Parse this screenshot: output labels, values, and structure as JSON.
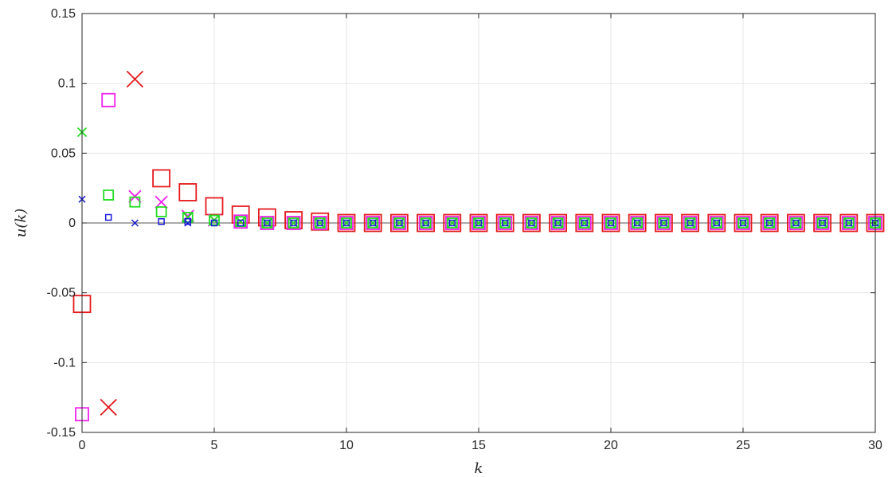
{
  "chart_data": {
    "type": "scatter",
    "title": "",
    "xlabel": "k",
    "ylabel": "u(k)",
    "xlim": [
      0,
      30
    ],
    "ylim": [
      -0.15,
      0.15
    ],
    "grid": true,
    "zero_line": true,
    "x_ticks": [
      "0",
      "5",
      "10",
      "15",
      "20",
      "25",
      "30"
    ],
    "y_ticks": [
      "-0.15",
      "-0.1",
      "-0.05",
      "0",
      "0.05",
      "0.1",
      "0.15"
    ],
    "series": [
      {
        "marker": "square",
        "size": "large",
        "color": "#e41a1c",
        "x": [
          0,
          1,
          2,
          3,
          4,
          5,
          6,
          7,
          8,
          9,
          10,
          11,
          12,
          13,
          14,
          15,
          16,
          17,
          18,
          19,
          20,
          21,
          22,
          23,
          24,
          25,
          26,
          27,
          28,
          29,
          30
        ],
        "y": [
          -0.058,
          null,
          null,
          0.032,
          0.022,
          0.012,
          0.006,
          0.004,
          0.002,
          0.001,
          0,
          0,
          0,
          0,
          0,
          0,
          0,
          0,
          0,
          0,
          0,
          0,
          0,
          0,
          0,
          0,
          0,
          0,
          0,
          0,
          0
        ]
      },
      {
        "marker": "x",
        "size": "large",
        "color": "#e41a1c",
        "x": [
          1,
          2
        ],
        "y": [
          -0.132,
          0.103
        ]
      },
      {
        "marker": "square",
        "size": "medium",
        "color": "#ee22ee",
        "x": [
          0,
          1,
          2,
          3,
          4,
          5,
          6,
          7,
          8,
          9,
          10,
          11,
          12,
          13,
          14,
          15,
          16,
          17,
          18,
          19,
          20,
          21,
          22,
          23,
          24,
          25,
          26,
          27,
          28,
          29,
          30
        ],
        "y": [
          -0.137,
          0.088,
          null,
          null,
          null,
          null,
          0.001,
          0,
          0,
          0,
          0,
          0,
          0,
          0,
          0,
          0,
          0,
          0,
          0,
          0,
          0,
          0,
          0,
          0,
          0,
          0,
          0,
          0,
          0,
          0,
          0
        ]
      },
      {
        "marker": "x",
        "size": "medium",
        "color": "#ee22ee",
        "x": [
          2,
          3,
          4,
          5,
          6,
          7,
          8,
          9,
          10,
          11,
          12,
          13,
          14,
          15,
          16,
          17,
          18,
          19,
          20,
          21,
          22,
          23,
          24,
          25,
          26,
          27,
          28,
          29,
          30
        ],
        "y": [
          0.019,
          0.015,
          0.005,
          0.002,
          0.001,
          0,
          0,
          0,
          0,
          0,
          0,
          0,
          0,
          0,
          0,
          0,
          0,
          0,
          0,
          0,
          0,
          0,
          0,
          0,
          0,
          0,
          0,
          0,
          0
        ]
      },
      {
        "marker": "square",
        "size": "small",
        "color": "#22dd22",
        "x": [
          1,
          2,
          3,
          4,
          5,
          6,
          7,
          8,
          9,
          10,
          11,
          12,
          13,
          14,
          15,
          16,
          17,
          18,
          19,
          20,
          21,
          22,
          23,
          24,
          25,
          26,
          27,
          28,
          29,
          30
        ],
        "y": [
          0.02,
          0.015,
          0.008,
          0.004,
          0.002,
          0.001,
          0,
          0,
          0,
          0,
          0,
          0,
          0,
          0,
          0,
          0,
          0,
          0,
          0,
          0,
          0,
          0,
          0,
          0,
          0,
          0,
          0,
          0,
          0,
          0
        ]
      },
      {
        "marker": "x",
        "size": "small",
        "color": "#22dd22",
        "x": [
          0,
          1,
          2,
          3,
          4,
          5,
          6,
          7,
          8,
          9,
          10,
          11,
          12,
          13,
          14,
          15,
          16,
          17,
          18,
          19,
          20,
          21,
          22,
          23,
          24,
          25,
          26,
          27,
          28,
          29,
          30
        ],
        "y": [
          0.065,
          null,
          null,
          null,
          0.004,
          0.002,
          0.001,
          0,
          0,
          0,
          0,
          0,
          0,
          0,
          0,
          0,
          0,
          0,
          0,
          0,
          0,
          0,
          0,
          0,
          0,
          0,
          0,
          0,
          0,
          0,
          0
        ]
      },
      {
        "marker": "square",
        "size": "tiny",
        "color": "#1a1adb",
        "x": [
          1,
          2,
          3,
          4,
          5,
          6,
          7,
          8,
          9,
          10,
          11,
          12,
          13,
          14,
          15,
          16,
          17,
          18,
          19,
          20,
          21,
          22,
          23,
          24,
          25,
          26,
          27,
          28,
          29,
          30
        ],
        "y": [
          0.004,
          null,
          0.001,
          0.001,
          0,
          0,
          0,
          0,
          0,
          0,
          0,
          0,
          0,
          0,
          0,
          0,
          0,
          0,
          0,
          0,
          0,
          0,
          0,
          0,
          0,
          0,
          0,
          0,
          0,
          0
        ]
      },
      {
        "marker": "x",
        "size": "tiny",
        "color": "#1a1adb",
        "x": [
          0,
          2,
          4
        ],
        "y": [
          0.017,
          0,
          0
        ]
      }
    ]
  }
}
